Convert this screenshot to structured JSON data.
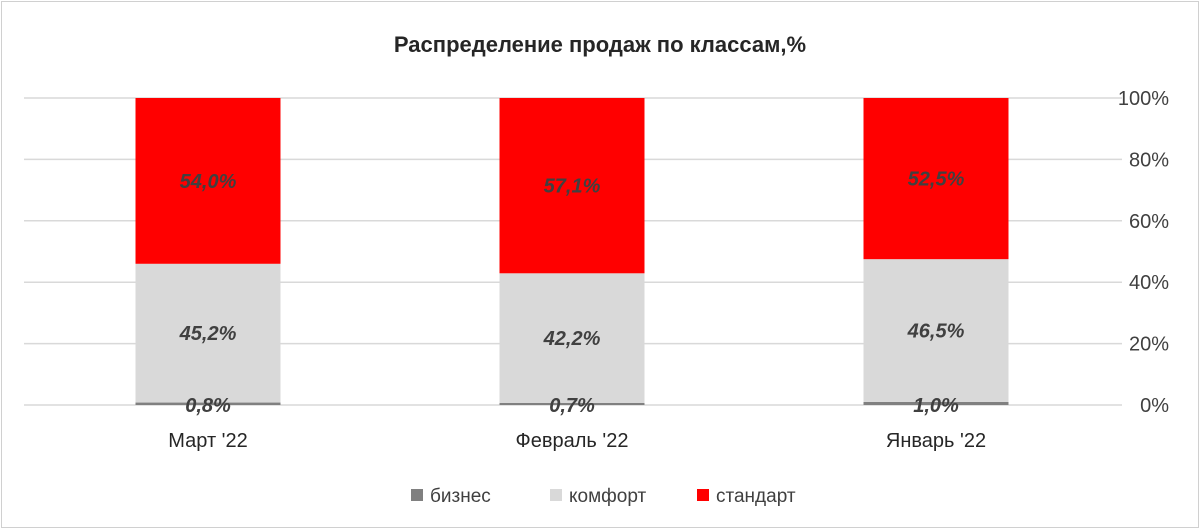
{
  "chart_data": {
    "type": "bar",
    "stacked": true,
    "percent_stacked": true,
    "title": "Распределение продаж по классам,%",
    "categories": [
      "Март '22",
      "Февраль '22",
      "Январь '22"
    ],
    "series": [
      {
        "name": "бизнес",
        "color": "#808080",
        "values": [
          0.8,
          0.7,
          1.0
        ],
        "labels": [
          "0,8%",
          "0,7%",
          "1,0%"
        ]
      },
      {
        "name": "комфорт",
        "color": "#d9d9d9",
        "values": [
          45.2,
          42.2,
          46.5
        ],
        "labels": [
          "45,2%",
          "42,2%",
          "46,5%"
        ]
      },
      {
        "name": "стандарт",
        "color": "#ff0000",
        "values": [
          54.0,
          57.1,
          52.5
        ],
        "labels": [
          "54,0%",
          "57,1%",
          "52,5%"
        ]
      }
    ],
    "y_axis": {
      "position": "right",
      "ylim": [
        0,
        100
      ],
      "ticks": [
        0,
        20,
        40,
        60,
        80,
        100
      ],
      "tick_labels": [
        "0%",
        "20%",
        "40%",
        "60%",
        "80%",
        "100%"
      ]
    },
    "grid": true,
    "legend_position": "bottom"
  }
}
